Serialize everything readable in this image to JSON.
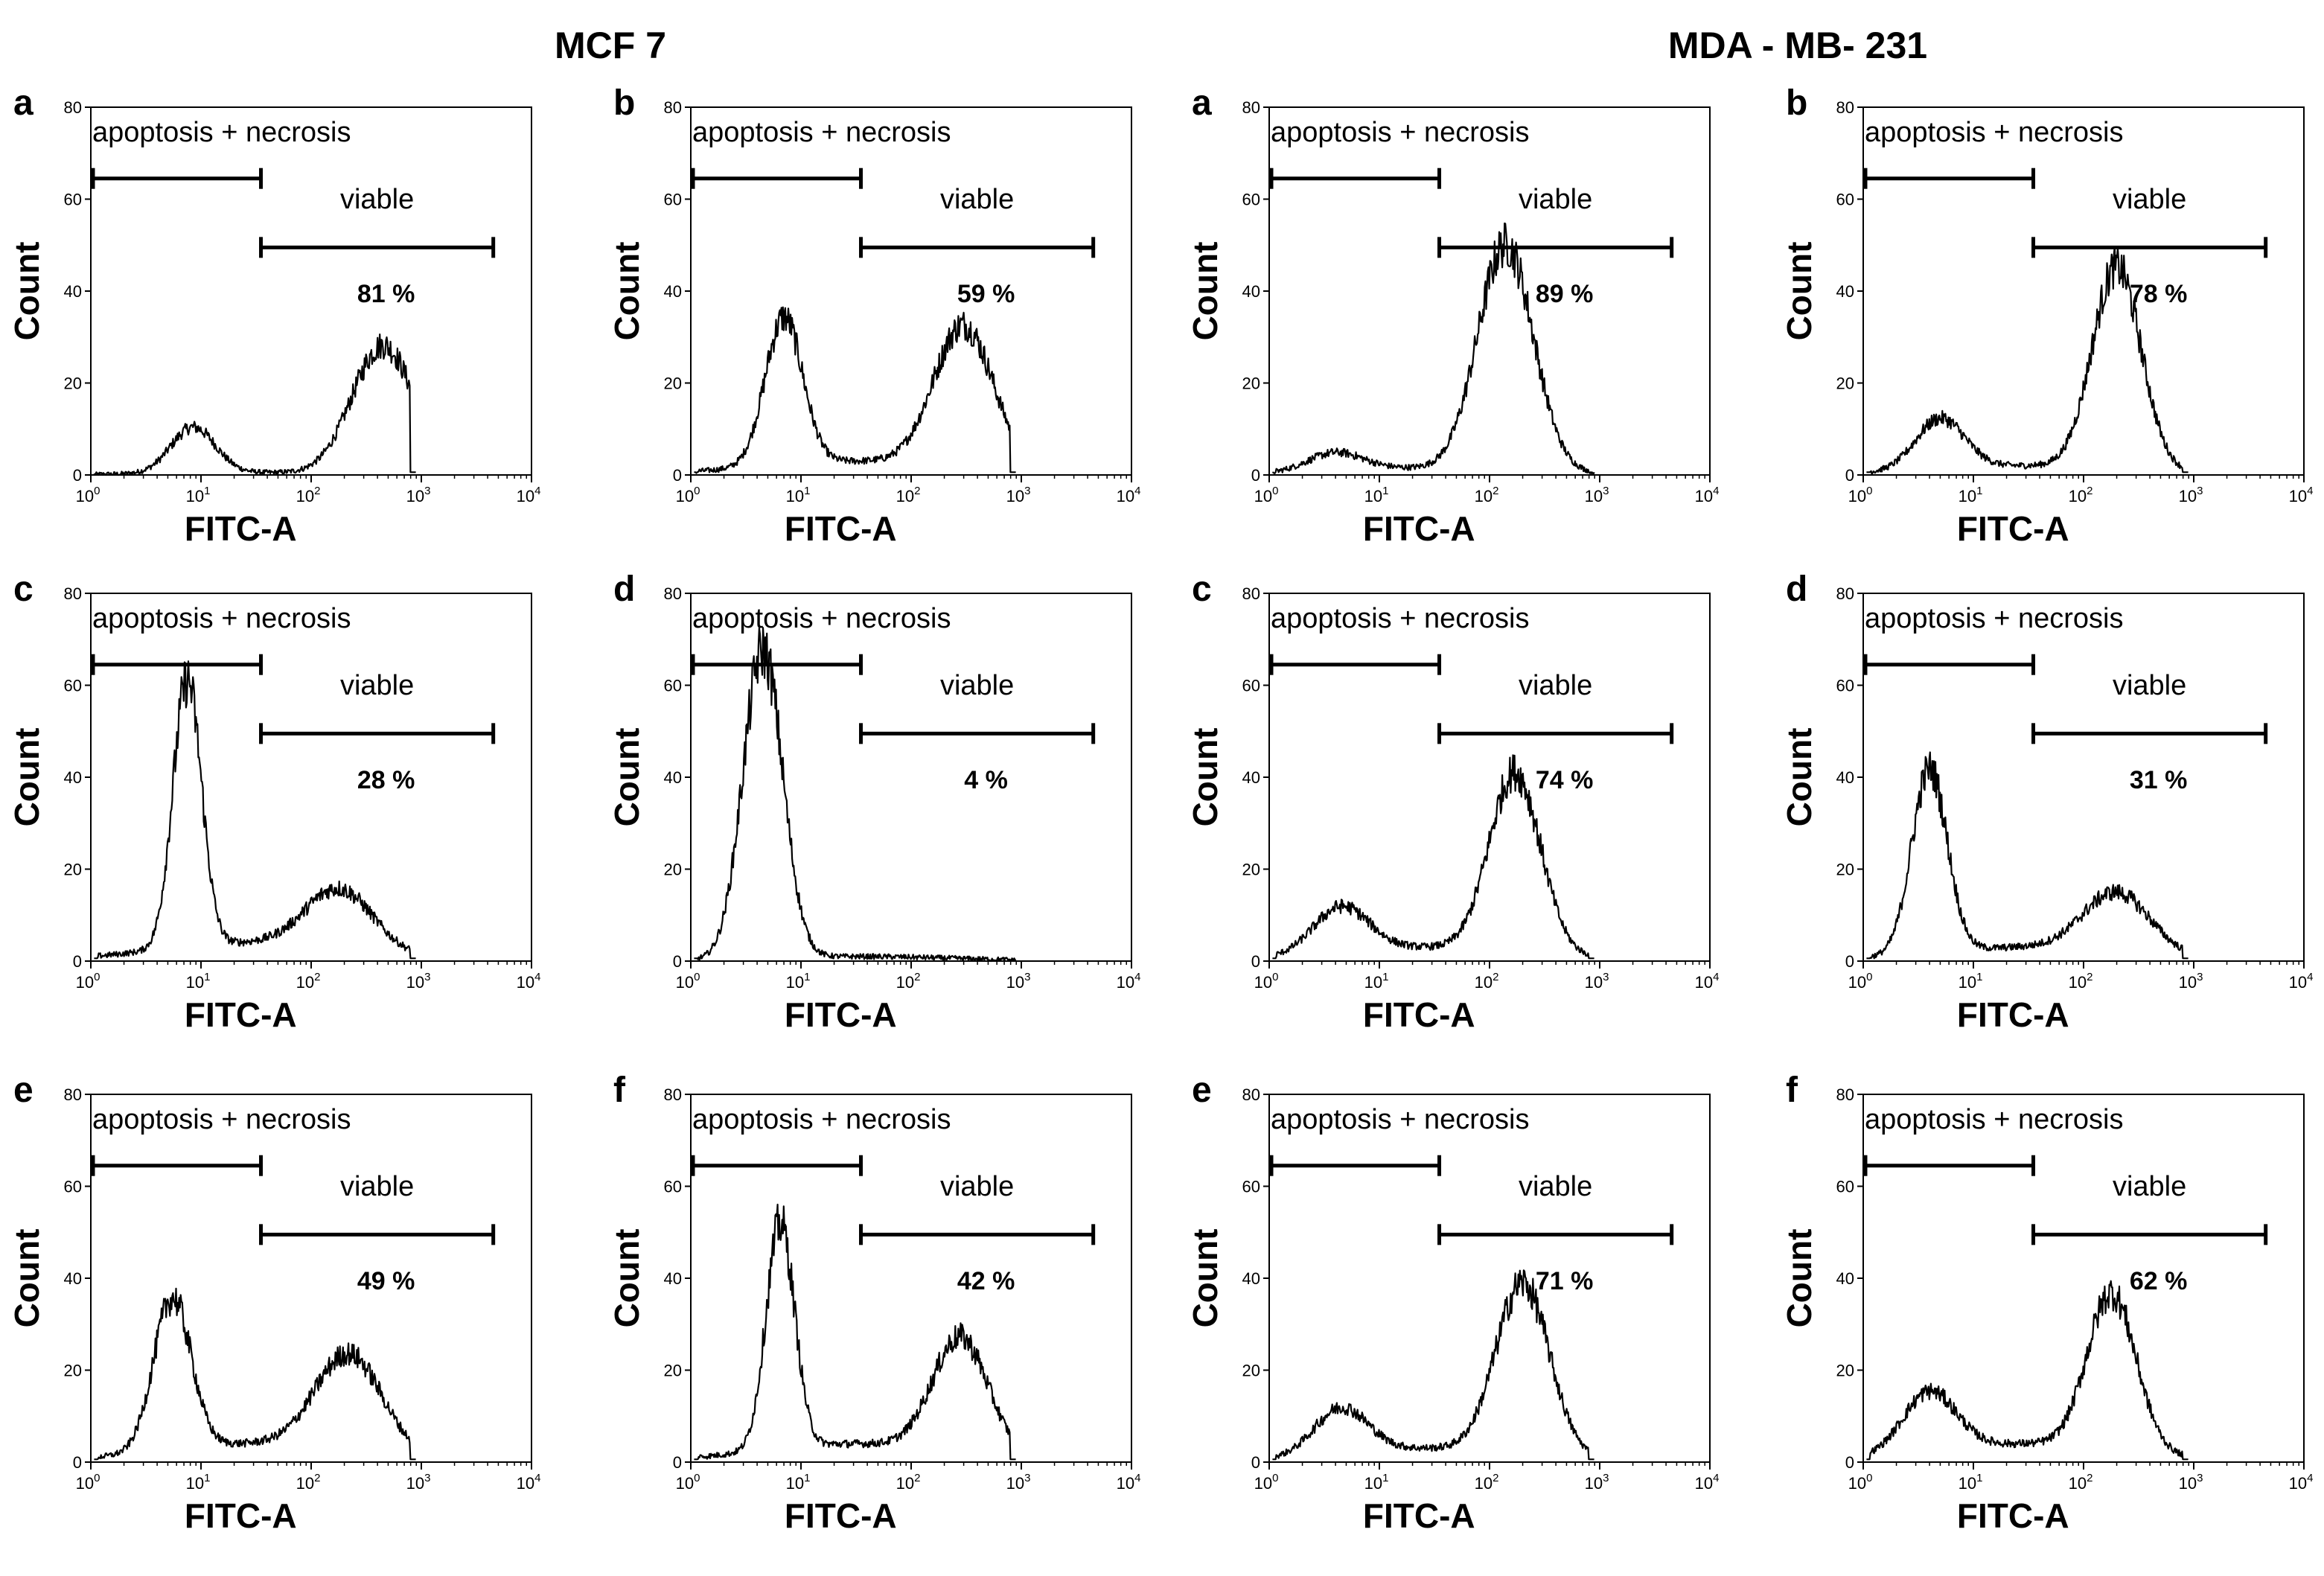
{
  "groups": [
    {
      "title": "MCF 7"
    },
    {
      "title": "MDA - MB- 231"
    }
  ],
  "chart_data": [
    {
      "type": "histogram",
      "group": "MCF 7",
      "panel": "a",
      "xlabel": "FITC-A",
      "ylabel": "Count",
      "xscale": "log",
      "xlim": [
        1,
        10000
      ],
      "ylim": [
        0,
        80
      ],
      "yticks": [
        0,
        20,
        40,
        60,
        80
      ],
      "xticks": [
        "10^0",
        "10^1",
        "10^2",
        "10^3",
        "10^4"
      ],
      "gates": [
        {
          "label": "apoptosis + necrosis",
          "range": [
            1,
            35
          ]
        },
        {
          "label": "viable",
          "range": [
            35,
            4500
          ]
        }
      ],
      "viable_percent": "81 %",
      "peaks": [
        {
          "center": 8.5,
          "height": 10,
          "sigma_log": 0.2
        },
        {
          "center": 450,
          "height": 28,
          "sigma_log": 0.28
        }
      ],
      "baseline": 0.5
    },
    {
      "type": "histogram",
      "group": "MCF 7",
      "panel": "b",
      "xlabel": "FITC-A",
      "ylabel": "Count",
      "xscale": "log",
      "xlim": [
        1,
        10000
      ],
      "ylim": [
        0,
        80
      ],
      "yticks": [
        0,
        20,
        40,
        60,
        80
      ],
      "xticks": [
        "10^0",
        "10^1",
        "10^2",
        "10^3",
        "10^4"
      ],
      "gates": [
        {
          "label": "apoptosis + necrosis",
          "range": [
            1,
            35
          ]
        },
        {
          "label": "viable",
          "range": [
            35,
            4500
          ]
        }
      ],
      "viable_percent": "59 %",
      "peaks": [
        {
          "center": 7,
          "height": 32,
          "sigma_log": 0.17
        },
        {
          "center": 300,
          "height": 31,
          "sigma_log": 0.27
        }
      ],
      "baseline": 3
    },
    {
      "type": "histogram",
      "group": "MDA - MB- 231",
      "panel": "a",
      "xlabel": "FITC-A",
      "ylabel": "Count",
      "xscale": "log",
      "xlim": [
        1,
        10000
      ],
      "ylim": [
        0,
        80
      ],
      "yticks": [
        0,
        20,
        40,
        60,
        80
      ],
      "xticks": [
        "10^0",
        "10^1",
        "10^2",
        "10^3",
        "10^4"
      ],
      "gates": [
        {
          "label": "apoptosis + necrosis",
          "range": [
            1,
            35
          ]
        },
        {
          "label": "viable",
          "range": [
            35,
            4500
          ]
        }
      ],
      "viable_percent": "89 %",
      "peaks": [
        {
          "center": 4,
          "height": 4,
          "sigma_log": 0.25
        },
        {
          "center": 140,
          "height": 49,
          "sigma_log": 0.25
        }
      ],
      "baseline": 1.5
    },
    {
      "type": "histogram",
      "group": "MDA - MB- 231",
      "panel": "b",
      "xlabel": "FITC-A",
      "ylabel": "Count",
      "xscale": "log",
      "xlim": [
        1,
        10000
      ],
      "ylim": [
        0,
        80
      ],
      "yticks": [
        0,
        20,
        40,
        60,
        80
      ],
      "xticks": [
        "10^0",
        "10^1",
        "10^2",
        "10^3",
        "10^4"
      ],
      "gates": [
        {
          "label": "apoptosis + necrosis",
          "range": [
            1,
            35
          ]
        },
        {
          "label": "viable",
          "range": [
            35,
            4500
          ]
        }
      ],
      "viable_percent": "78 %",
      "peaks": [
        {
          "center": 5,
          "height": 11,
          "sigma_log": 0.22
        },
        {
          "center": 200,
          "height": 44,
          "sigma_log": 0.22
        }
      ],
      "baseline": 2
    },
    {
      "type": "histogram",
      "group": "MCF 7",
      "panel": "c",
      "xlabel": "FITC-A",
      "ylabel": "Count",
      "xscale": "log",
      "xlim": [
        1,
        10000
      ],
      "ylim": [
        0,
        80
      ],
      "yticks": [
        0,
        20,
        40,
        60,
        80
      ],
      "xticks": [
        "10^0",
        "10^1",
        "10^2",
        "10^3",
        "10^4"
      ],
      "gates": [
        {
          "label": "apoptosis + necrosis",
          "range": [
            1,
            35
          ]
        },
        {
          "label": "viable",
          "range": [
            35,
            4500
          ]
        }
      ],
      "viable_percent": "28 %",
      "peaks": [
        {
          "center": 7.5,
          "height": 58,
          "sigma_log": 0.13
        },
        {
          "center": 180,
          "height": 13,
          "sigma_log": 0.3
        }
      ],
      "baseline": 4
    },
    {
      "type": "histogram",
      "group": "MCF 7",
      "panel": "d",
      "xlabel": "FITC-A",
      "ylabel": "Count",
      "xscale": "log",
      "xlim": [
        1,
        10000
      ],
      "ylim": [
        0,
        80
      ],
      "yticks": [
        0,
        20,
        40,
        60,
        80
      ],
      "xticks": [
        "10^0",
        "10^1",
        "10^2",
        "10^3",
        "10^4"
      ],
      "gates": [
        {
          "label": "apoptosis + necrosis",
          "range": [
            1,
            35
          ]
        },
        {
          "label": "viable",
          "range": [
            35,
            4500
          ]
        }
      ],
      "viable_percent": "4 %",
      "peaks": [
        {
          "center": 4.5,
          "height": 67,
          "sigma_log": 0.18
        }
      ],
      "baseline": 1
    },
    {
      "type": "histogram",
      "group": "MDA - MB- 231",
      "panel": "c",
      "xlabel": "FITC-A",
      "ylabel": "Count",
      "xscale": "log",
      "xlim": [
        1,
        10000
      ],
      "ylim": [
        0,
        80
      ],
      "yticks": [
        0,
        20,
        40,
        60,
        80
      ],
      "xticks": [
        "10^0",
        "10^1",
        "10^2",
        "10^3",
        "10^4"
      ],
      "gates": [
        {
          "label": "apoptosis + necrosis",
          "range": [
            1,
            35
          ]
        },
        {
          "label": "viable",
          "range": [
            35,
            4500
          ]
        }
      ],
      "viable_percent": "74 %",
      "peaks": [
        {
          "center": 4.5,
          "height": 10,
          "sigma_log": 0.25
        },
        {
          "center": 170,
          "height": 39,
          "sigma_log": 0.23
        }
      ],
      "baseline": 3
    },
    {
      "type": "histogram",
      "group": "MDA - MB- 231",
      "panel": "d",
      "xlabel": "FITC-A",
      "ylabel": "Count",
      "xscale": "log",
      "xlim": [
        1,
        10000
      ],
      "ylim": [
        0,
        80
      ],
      "yticks": [
        0,
        20,
        40,
        60,
        80
      ],
      "xticks": [
        "10^0",
        "10^1",
        "10^2",
        "10^3",
        "10^4"
      ],
      "gates": [
        {
          "label": "apoptosis + necrosis",
          "range": [
            1,
            35
          ]
        },
        {
          "label": "viable",
          "range": [
            35,
            4500
          ]
        }
      ],
      "viable_percent": "31 %",
      "peaks": [
        {
          "center": 4,
          "height": 40,
          "sigma_log": 0.16
        },
        {
          "center": 200,
          "height": 13,
          "sigma_log": 0.3
        }
      ],
      "baseline": 3
    },
    {
      "type": "histogram",
      "group": "MCF 7",
      "panel": "e",
      "xlabel": "FITC-A",
      "ylabel": "Count",
      "xscale": "log",
      "xlim": [
        1,
        10000
      ],
      "ylim": [
        0,
        80
      ],
      "yticks": [
        0,
        20,
        40,
        60,
        80
      ],
      "xticks": [
        "10^0",
        "10^1",
        "10^2",
        "10^3",
        "10^4"
      ],
      "gates": [
        {
          "label": "apoptosis + necrosis",
          "range": [
            1,
            35
          ]
        },
        {
          "label": "viable",
          "range": [
            35,
            4500
          ]
        }
      ],
      "viable_percent": "49 %",
      "peaks": [
        {
          "center": 5.5,
          "height": 33,
          "sigma_log": 0.17
        },
        {
          "center": 220,
          "height": 21,
          "sigma_log": 0.3
        }
      ],
      "baseline": 4
    },
    {
      "type": "histogram",
      "group": "MCF 7",
      "panel": "f",
      "xlabel": "FITC-A",
      "ylabel": "Count",
      "xscale": "log",
      "xlim": [
        1,
        10000
      ],
      "ylim": [
        0,
        80
      ],
      "yticks": [
        0,
        20,
        40,
        60,
        80
      ],
      "xticks": [
        "10^0",
        "10^1",
        "10^2",
        "10^3",
        "10^4"
      ],
      "gates": [
        {
          "label": "apoptosis + necrosis",
          "range": [
            1,
            35
          ]
        },
        {
          "label": "viable",
          "range": [
            35,
            4500
          ]
        }
      ],
      "viable_percent": "42 %",
      "peaks": [
        {
          "center": 6.5,
          "height": 49,
          "sigma_log": 0.13
        },
        {
          "center": 280,
          "height": 25,
          "sigma_log": 0.25
        }
      ],
      "baseline": 4
    },
    {
      "type": "histogram",
      "group": "MDA - MB- 231",
      "panel": "e",
      "xlabel": "FITC-A",
      "ylabel": "Count",
      "xscale": "log",
      "xlim": [
        1,
        10000
      ],
      "ylim": [
        0,
        80
      ],
      "yticks": [
        0,
        20,
        40,
        60,
        80
      ],
      "xticks": [
        "10^0",
        "10^1",
        "10^2",
        "10^3",
        "10^4"
      ],
      "gates": [
        {
          "label": "apoptosis + necrosis",
          "range": [
            1,
            35
          ]
        },
        {
          "label": "viable",
          "range": [
            35,
            4500
          ]
        }
      ],
      "viable_percent": "71 %",
      "peaks": [
        {
          "center": 4.5,
          "height": 10,
          "sigma_log": 0.24
        },
        {
          "center": 200,
          "height": 37,
          "sigma_log": 0.24
        }
      ],
      "baseline": 3
    },
    {
      "type": "histogram",
      "group": "MDA - MB- 231",
      "panel": "f",
      "xlabel": "FITC-A",
      "ylabel": "Count",
      "xscale": "log",
      "xlim": [
        1,
        10000
      ],
      "ylim": [
        0,
        80
      ],
      "yticks": [
        0,
        20,
        40,
        60,
        80
      ],
      "xticks": [
        "10^0",
        "10^1",
        "10^2",
        "10^3",
        "10^4"
      ],
      "gates": [
        {
          "label": "apoptosis + necrosis",
          "range": [
            1,
            35
          ]
        },
        {
          "label": "viable",
          "range": [
            35,
            4500
          ]
        }
      ],
      "viable_percent": "62 %",
      "peaks": [
        {
          "center": 4,
          "height": 13,
          "sigma_log": 0.24
        },
        {
          "center": 180,
          "height": 34,
          "sigma_log": 0.22
        }
      ],
      "baseline": 4
    }
  ]
}
